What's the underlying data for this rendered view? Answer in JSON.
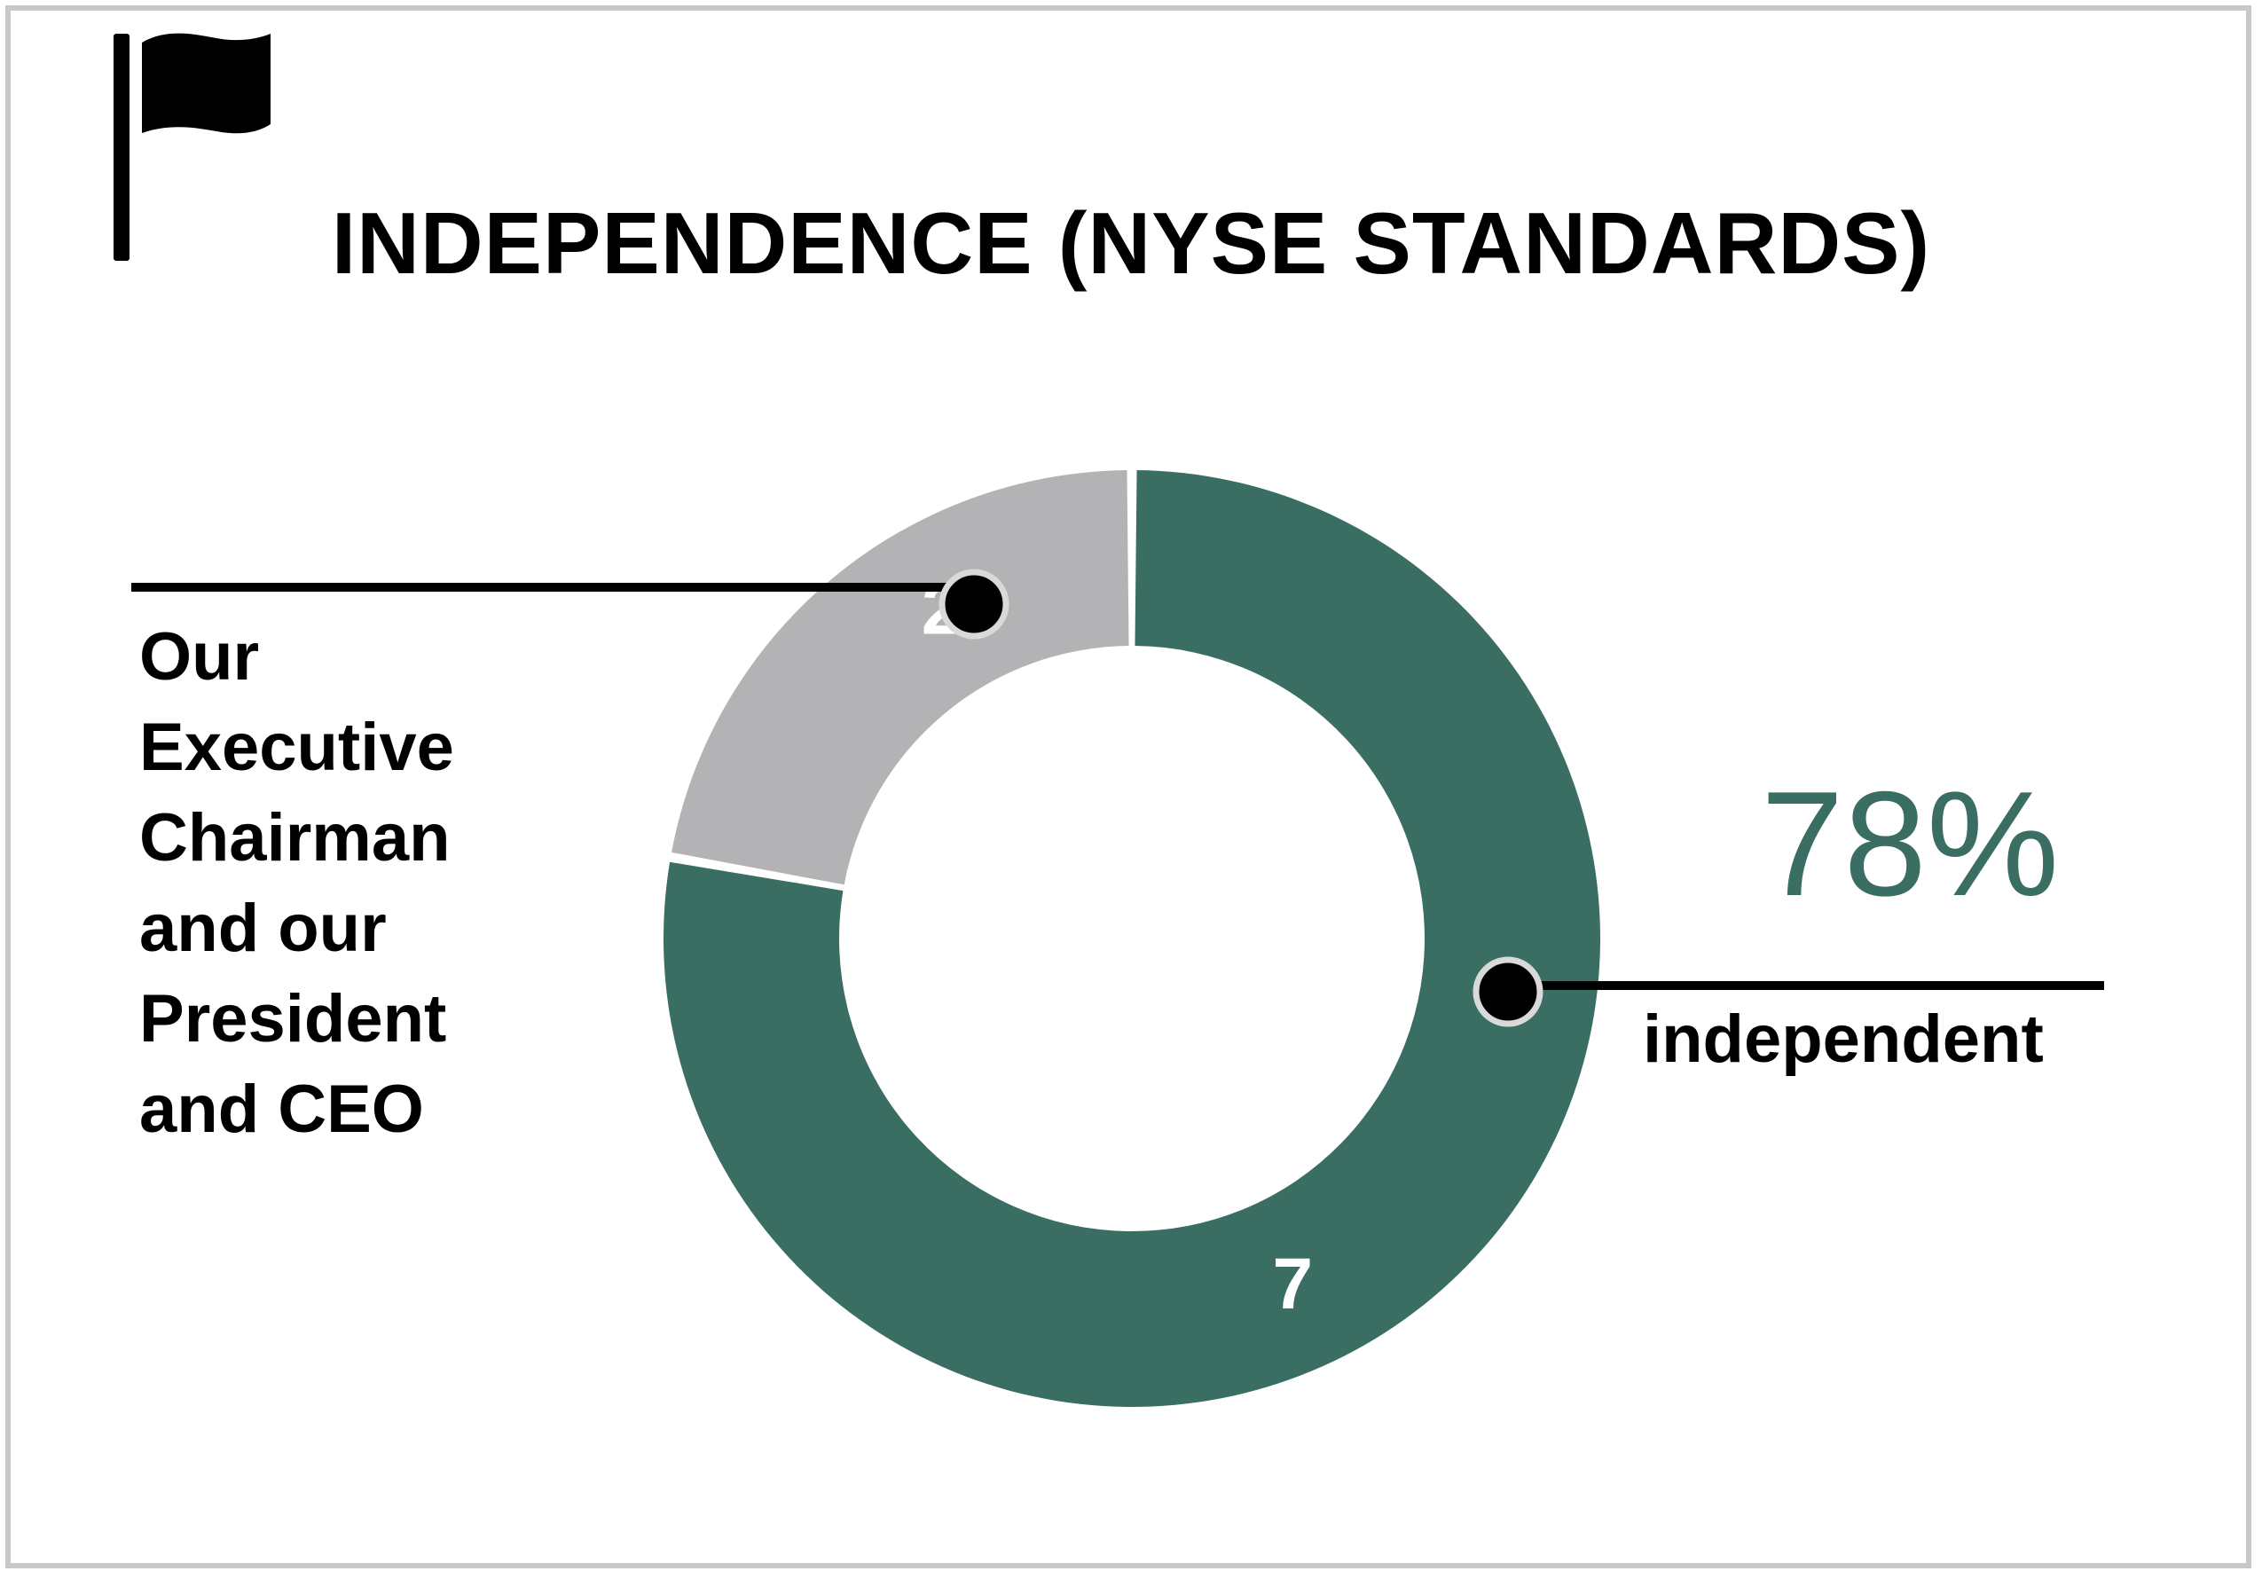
{
  "title": "INDEPENDENCE (NYSE STANDARDS)",
  "icon": "flag-icon",
  "colors": {
    "independent": "#3a6e62",
    "non_independent": "#b3b3b6",
    "frame": "#c8c8c8"
  },
  "chart_data": {
    "type": "pie",
    "donut": true,
    "title": "INDEPENDENCE (NYSE STANDARDS)",
    "categories": [
      "independent",
      "Our Executive Chairman and our President and CEO"
    ],
    "values": [
      7,
      2
    ],
    "data_labels": [
      "7",
      "2"
    ],
    "colors": [
      "#3a6e62",
      "#b3b3b6"
    ],
    "annotations": {
      "percent": "78%",
      "independent_label": "independent",
      "non_independent_label": "Our\nExecutive\nChairman\nand our\nPresident\nand CEO"
    }
  }
}
